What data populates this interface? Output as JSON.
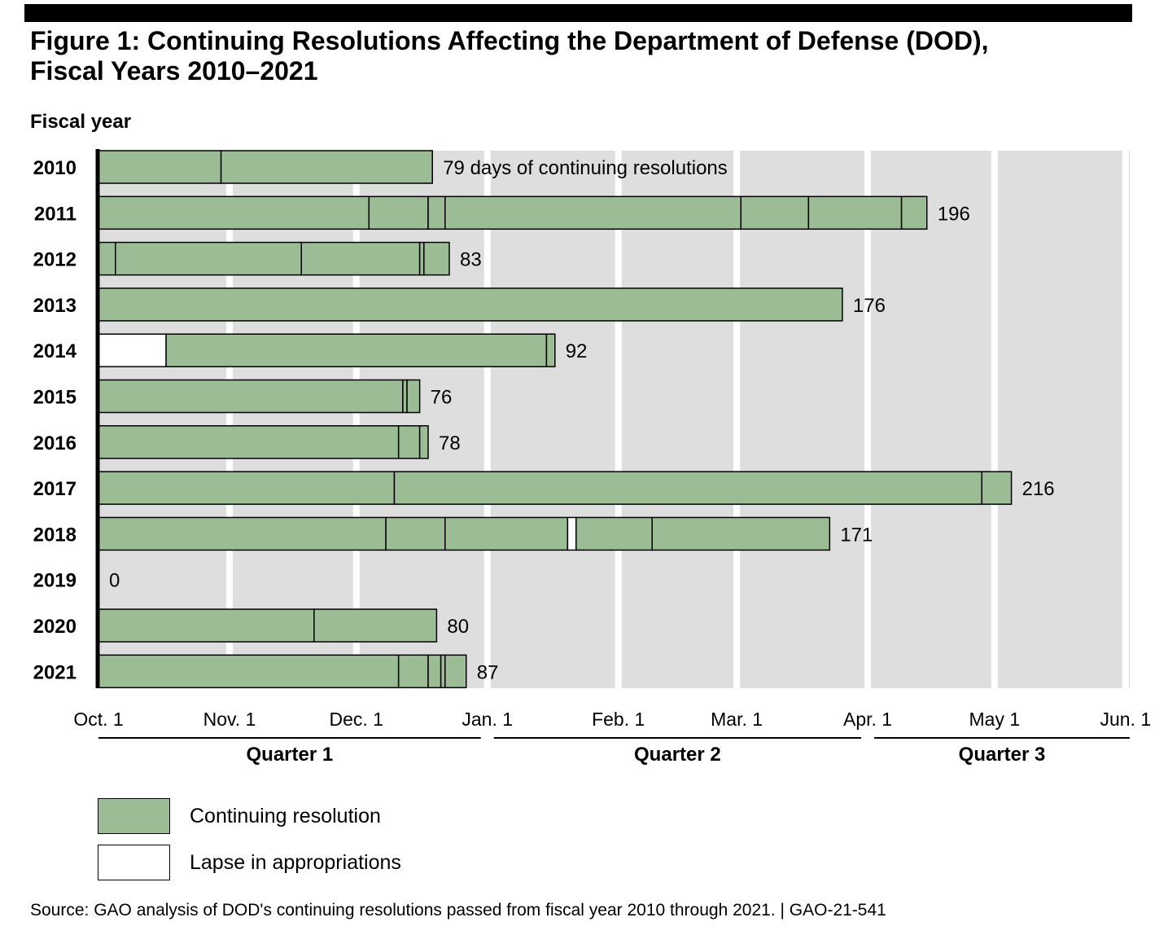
{
  "title": {
    "line1": "Figure 1: Continuing Resolutions Affecting the Department of Defense (DOD),",
    "line2": "Fiscal Years 2010–2021"
  },
  "source_note": "Source: GAO analysis of DOD's continuing resolutions passed from fiscal year 2010 through 2021.  |  GAO-21-541",
  "colors": {
    "continuing_resolution": "#9cbc96",
    "lapse": "#ffffff",
    "background": "#dedede",
    "gridline": "#ffffff"
  },
  "chart_data": {
    "type": "bar",
    "orientation": "horizontal",
    "stacked": true,
    "ylabel": "Fiscal year",
    "x_unit": "days from Oct. 1",
    "xlim": [
      0,
      244
    ],
    "x_ticks": [
      {
        "day": 0,
        "label": "Oct. 1"
      },
      {
        "day": 31,
        "label": "Nov. 1"
      },
      {
        "day": 61,
        "label": "Dec. 1"
      },
      {
        "day": 92,
        "label": "Jan. 1"
      },
      {
        "day": 123,
        "label": "Feb. 1"
      },
      {
        "day": 151,
        "label": "Mar. 1"
      },
      {
        "day": 182,
        "label": "Apr. 1"
      },
      {
        "day": 212,
        "label": "May 1"
      },
      {
        "day": 243,
        "label": "Jun. 1"
      }
    ],
    "quarters": [
      {
        "label": "Quarter 1",
        "start": 0,
        "end": 92
      },
      {
        "label": "Quarter 2",
        "start": 92,
        "end": 182
      },
      {
        "label": "Quarter 3",
        "start": 182,
        "end": 244
      }
    ],
    "legend": [
      {
        "name": "Continuing resolution",
        "type": "cr"
      },
      {
        "name": "Lapse in appropriations",
        "type": "lapse"
      }
    ],
    "rows": [
      {
        "year": "2010",
        "total": 79,
        "label": "79 days of continuing resolutions",
        "segments": [
          {
            "start": 0,
            "end": 29,
            "type": "cr"
          },
          {
            "start": 29,
            "end": 79,
            "type": "cr"
          }
        ]
      },
      {
        "year": "2011",
        "total": 196,
        "label": "196",
        "segments": [
          {
            "start": 0,
            "end": 64,
            "type": "cr"
          },
          {
            "start": 64,
            "end": 78,
            "type": "cr"
          },
          {
            "start": 78,
            "end": 82,
            "type": "cr"
          },
          {
            "start": 82,
            "end": 152,
            "type": "cr"
          },
          {
            "start": 152,
            "end": 168,
            "type": "cr"
          },
          {
            "start": 168,
            "end": 190,
            "type": "cr"
          },
          {
            "start": 190,
            "end": 196,
            "type": "cr"
          }
        ]
      },
      {
        "year": "2012",
        "total": 83,
        "label": "83",
        "segments": [
          {
            "start": 0,
            "end": 4,
            "type": "cr"
          },
          {
            "start": 4,
            "end": 48,
            "type": "cr"
          },
          {
            "start": 48,
            "end": 76,
            "type": "cr"
          },
          {
            "start": 76,
            "end": 77,
            "type": "cr"
          },
          {
            "start": 77,
            "end": 83,
            "type": "cr"
          }
        ]
      },
      {
        "year": "2013",
        "total": 176,
        "label": "176",
        "segments": [
          {
            "start": 0,
            "end": 176,
            "type": "cr"
          }
        ]
      },
      {
        "year": "2014",
        "total": 92,
        "label": "92",
        "segments": [
          {
            "start": 0,
            "end": 16,
            "type": "lapse"
          },
          {
            "start": 16,
            "end": 106,
            "type": "cr"
          },
          {
            "start": 106,
            "end": 108,
            "type": "cr"
          }
        ]
      },
      {
        "year": "2015",
        "total": 76,
        "label": "76",
        "segments": [
          {
            "start": 0,
            "end": 72,
            "type": "cr"
          },
          {
            "start": 72,
            "end": 73,
            "type": "cr"
          },
          {
            "start": 73,
            "end": 76,
            "type": "cr"
          }
        ]
      },
      {
        "year": "2016",
        "total": 78,
        "label": "78",
        "segments": [
          {
            "start": 0,
            "end": 71,
            "type": "cr"
          },
          {
            "start": 71,
            "end": 76,
            "type": "cr"
          },
          {
            "start": 76,
            "end": 78,
            "type": "cr"
          }
        ]
      },
      {
        "year": "2017",
        "total": 216,
        "label": "216",
        "segments": [
          {
            "start": 0,
            "end": 70,
            "type": "cr"
          },
          {
            "start": 70,
            "end": 209,
            "type": "cr"
          },
          {
            "start": 209,
            "end": 216,
            "type": "cr"
          }
        ]
      },
      {
        "year": "2018",
        "total": 171,
        "label": "171",
        "segments": [
          {
            "start": 0,
            "end": 68,
            "type": "cr"
          },
          {
            "start": 68,
            "end": 82,
            "type": "cr"
          },
          {
            "start": 82,
            "end": 111,
            "type": "cr"
          },
          {
            "start": 111,
            "end": 113,
            "type": "lapse"
          },
          {
            "start": 113,
            "end": 131,
            "type": "cr"
          },
          {
            "start": 131,
            "end": 173,
            "type": "cr"
          }
        ]
      },
      {
        "year": "2019",
        "total": 0,
        "label": "0",
        "segments": []
      },
      {
        "year": "2020",
        "total": 80,
        "label": "80",
        "segments": [
          {
            "start": 0,
            "end": 51,
            "type": "cr"
          },
          {
            "start": 51,
            "end": 80,
            "type": "cr"
          }
        ]
      },
      {
        "year": "2021",
        "total": 87,
        "label": "87",
        "segments": [
          {
            "start": 0,
            "end": 71,
            "type": "cr"
          },
          {
            "start": 71,
            "end": 78,
            "type": "cr"
          },
          {
            "start": 78,
            "end": 81,
            "type": "cr"
          },
          {
            "start": 81,
            "end": 82,
            "type": "cr"
          },
          {
            "start": 82,
            "end": 87,
            "type": "cr"
          }
        ]
      }
    ]
  }
}
